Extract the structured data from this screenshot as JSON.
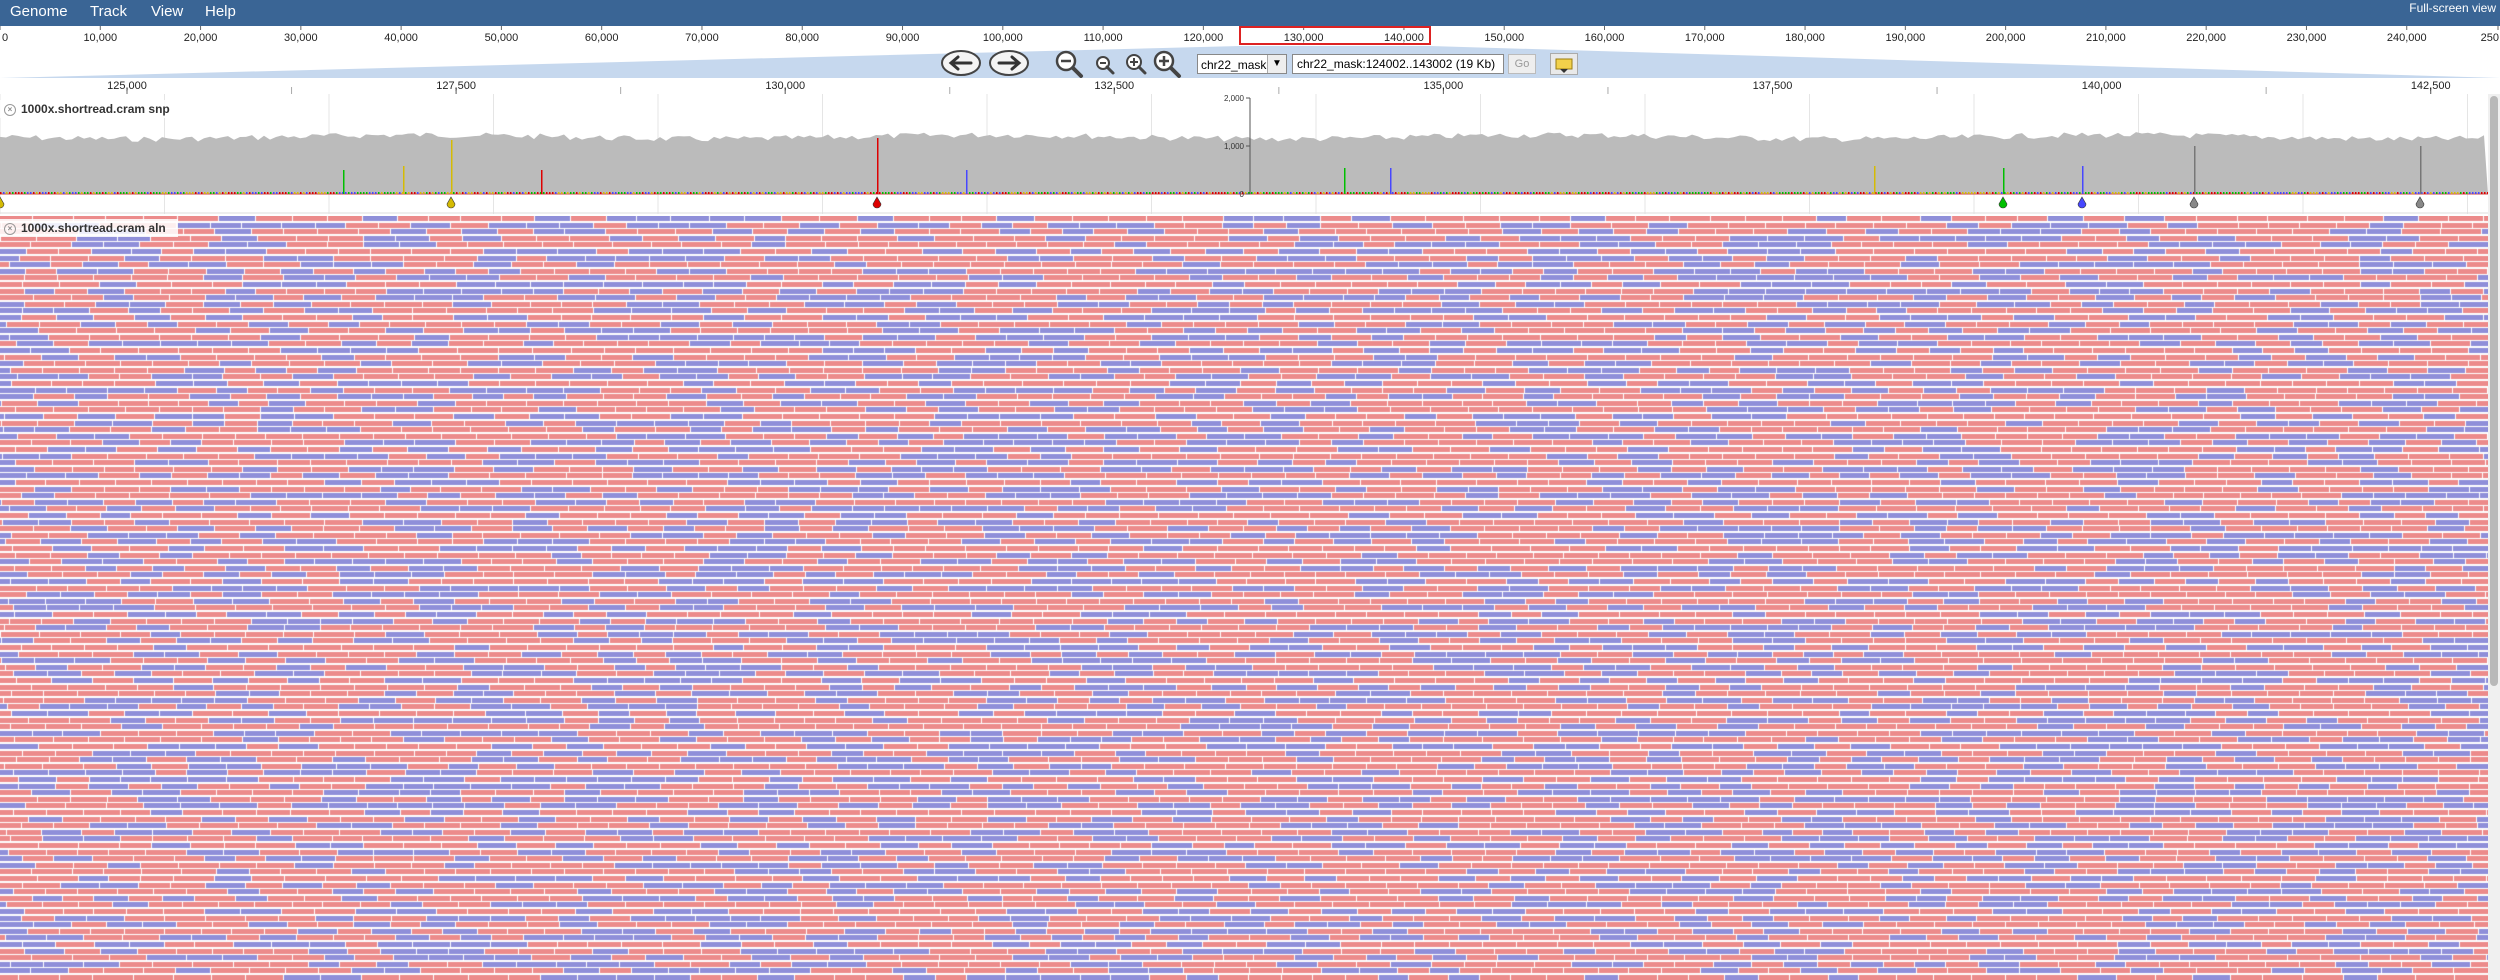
{
  "menu": {
    "items": [
      "Genome",
      "Track",
      "View",
      "Help"
    ],
    "fullscreen_label": "Full-screen view"
  },
  "overview": {
    "ticks": [
      "0",
      "10,000",
      "20,000",
      "30,000",
      "40,000",
      "50,000",
      "60,000",
      "70,000",
      "80,000",
      "90,000",
      "100,000",
      "110,000",
      "120,000",
      "130,000",
      "140,000",
      "150,000",
      "160,000",
      "170,000",
      "180,000",
      "190,000",
      "200,000",
      "210,000",
      "220,000",
      "230,000",
      "240,000",
      "250"
    ],
    "region_highlight_color": "#dd2222"
  },
  "nav": {
    "reference_select": "chr22_mask",
    "location_value": "chr22_mask:124002..143002 (19 Kb)",
    "go_label": "Go"
  },
  "detail_ruler": {
    "ticks": [
      "125,000",
      "127,500",
      "130,000",
      "132,500",
      "135,000",
      "137,500",
      "140,000",
      "142,500"
    ]
  },
  "tracks": [
    {
      "label": "1000x.shortread.cram snp",
      "type": "snp-coverage",
      "y_axis_labels": [
        "2,000",
        "1,000",
        "0"
      ],
      "coverage_color": "#bbbbbb"
    },
    {
      "label": "1000x.shortread.cram aln",
      "type": "alignments",
      "forward_color": "#ec8b8b",
      "reverse_color": "#8f8fd9"
    }
  ],
  "colors": {
    "menu_bg": "#3a6595",
    "snp_A": "#00bf00",
    "snp_C": "#4747ff",
    "snp_G": "#d5bb04",
    "snp_T": "#dd0000"
  }
}
